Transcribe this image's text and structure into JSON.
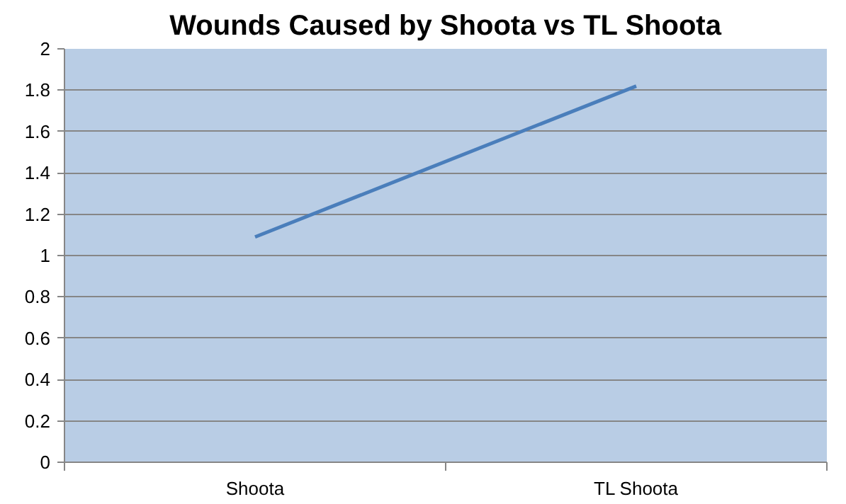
{
  "chart_data": {
    "type": "line",
    "title": "Wounds Caused by Shoota vs TL Shoota",
    "categories": [
      "Shoota",
      "TL Shoota"
    ],
    "series": [
      {
        "color": "#4a7ebb",
        "values": [
          1.09,
          1.82
        ]
      }
    ],
    "ylim": [
      0,
      2
    ],
    "yticks": [
      0,
      0.2,
      0.4,
      0.6,
      0.8,
      1,
      1.2,
      1.4,
      1.6,
      1.8,
      2
    ],
    "grid": "y",
    "marker": "none",
    "line_style": "solid"
  }
}
